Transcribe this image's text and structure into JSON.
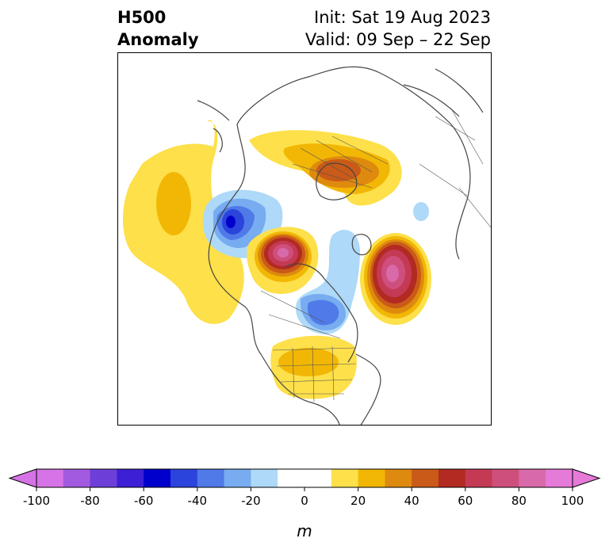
{
  "title": {
    "left_line1": "H500",
    "left_line2": "Anomaly",
    "right_line1": "Init: Sat 19 Aug 2023",
    "right_line2": "Valid: 09 Sep – 22 Sep"
  },
  "colorbar": {
    "unit": "m",
    "ticks": [
      "-100",
      "-80",
      "-60",
      "-40",
      "-20",
      "0",
      "20",
      "40",
      "60",
      "80",
      "100"
    ],
    "colors": [
      "#d673e6",
      "#a25ae0",
      "#6e3fd8",
      "#3d1fd6",
      "#0000cd",
      "#2b44dc",
      "#4f7ae8",
      "#78acf0",
      "#aed9f8",
      "#ffffff",
      "#ffffff",
      "#fde04a",
      "#f2b705",
      "#de8a0f",
      "#c95a17",
      "#b22a22",
      "#c43a55",
      "#cf4f7c",
      "#d96aaa",
      "#e67ad8"
    ],
    "under_color": "#d673e6",
    "over_color": "#e67ad8"
  },
  "map": {
    "projection": "polar-stereographic",
    "anomaly_features": [
      {
        "name": "north-pacific-ridge",
        "sign": "positive",
        "peak": 30
      },
      {
        "name": "alaska-trough",
        "sign": "negative",
        "peak": -50
      },
      {
        "name": "arctic-high",
        "sign": "positive",
        "peak": 80
      },
      {
        "name": "greenland-trough",
        "sign": "negative",
        "peak": -40
      },
      {
        "name": "north-atlantic-ridge",
        "sign": "positive",
        "peak": 80
      },
      {
        "name": "central-us-ridge",
        "sign": "positive",
        "peak": 30
      },
      {
        "name": "siberia-ridge",
        "sign": "positive",
        "peak": 50
      }
    ]
  }
}
